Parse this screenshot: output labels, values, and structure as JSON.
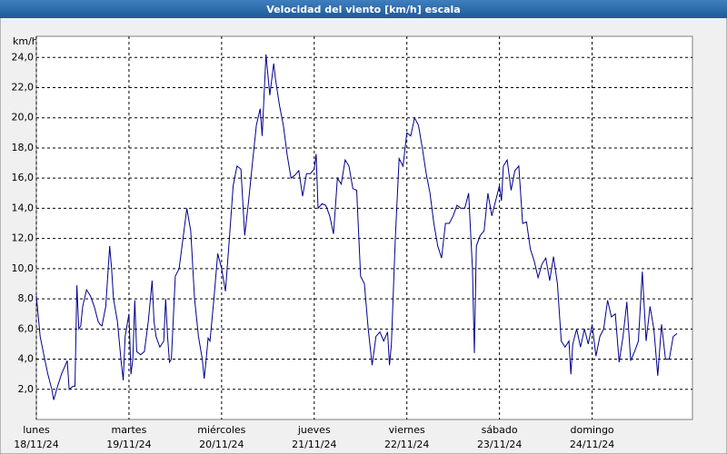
{
  "chart_data": {
    "type": "line",
    "title": "Velocidad del viento [km/h] escala",
    "y_unit": "km/h",
    "xlim": [
      0,
      170
    ],
    "ylim": [
      0,
      25.4
    ],
    "xticks": [
      {
        "value": 0,
        "label": "lunes"
      },
      {
        "value": 24,
        "label": "martes"
      },
      {
        "value": 48,
        "label": "miércoles"
      },
      {
        "value": 72,
        "label": "jueves"
      },
      {
        "value": 96,
        "label": "viernes"
      },
      {
        "value": 120,
        "label": "sábado"
      },
      {
        "value": 144,
        "label": "domingo"
      }
    ],
    "xtick_dates": [
      "18/11/24",
      "19/11/24",
      "20/11/24",
      "21/11/24",
      "22/11/24",
      "23/11/24",
      "24/11/24"
    ],
    "yticks": [
      {
        "value": 2,
        "label": "2,0"
      },
      {
        "value": 4,
        "label": "4,0"
      },
      {
        "value": 6,
        "label": "6,0"
      },
      {
        "value": 8,
        "label": "8,0"
      },
      {
        "value": 10,
        "label": "10,0"
      },
      {
        "value": 12,
        "label": "12,0"
      },
      {
        "value": 14,
        "label": "14,0"
      },
      {
        "value": 16,
        "label": "16,0"
      },
      {
        "value": 18,
        "label": "18,0"
      },
      {
        "value": 20,
        "label": "20,0"
      },
      {
        "value": 22,
        "label": "22,0"
      },
      {
        "value": 24,
        "label": "24,0"
      }
    ],
    "grid": true,
    "color": "#00008b",
    "x": [
      0,
      1,
      2,
      3,
      4,
      4.5,
      5.5,
      6.5,
      7.5,
      8,
      8.5,
      9.5,
      10,
      10.5,
      11,
      11.5,
      12,
      13,
      14,
      15,
      16,
      16.5,
      17,
      18,
      19,
      19.5,
      20,
      21,
      22,
      22.5,
      23,
      24,
      24.5,
      25,
      25.5,
      26,
      27,
      28,
      29,
      30,
      30.5,
      31,
      32,
      33,
      33.5,
      34,
      34.5,
      35,
      36,
      37,
      38,
      39,
      40,
      41,
      42,
      43,
      43.5,
      44,
      44.5,
      45,
      46,
      47,
      48,
      49,
      50,
      51,
      52,
      53,
      54,
      55,
      56,
      57,
      58,
      58.5,
      59.5,
      60.5,
      61.5,
      62,
      63,
      64,
      65,
      66,
      67,
      68,
      69,
      70,
      71,
      72,
      72.5,
      73,
      74,
      75,
      76,
      77,
      78,
      79,
      80,
      81,
      82,
      83,
      84,
      85,
      86,
      87,
      88,
      89,
      90,
      91,
      91.5,
      92,
      93,
      94,
      95,
      96,
      97,
      98,
      99,
      100,
      101,
      102,
      103,
      104,
      105,
      106,
      107,
      108,
      109,
      110,
      111,
      112,
      113,
      113.5,
      114,
      115,
      116,
      117,
      118,
      119,
      120,
      120.5,
      121,
      122,
      123,
      124,
      125,
      126,
      127,
      128,
      129,
      130,
      131,
      132,
      133,
      134,
      135,
      136,
      137,
      138,
      138.5,
      139,
      140,
      141,
      142,
      143,
      144,
      145,
      146,
      147,
      148,
      149,
      150,
      151,
      152,
      153,
      154,
      155,
      156,
      157,
      158,
      159,
      160,
      161,
      162,
      163,
      164,
      165,
      166
    ],
    "values": [
      8.2,
      5.5,
      4.2,
      3.0,
      2.0,
      1.3,
      2.2,
      3.0,
      3.6,
      3.9,
      2.0,
      2.2,
      2.2,
      8.9,
      6.0,
      6.2,
      7.5,
      8.6,
      8.2,
      7.5,
      6.5,
      6.3,
      6.2,
      7.5,
      11.5,
      10.0,
      8.0,
      6.5,
      3.8,
      2.6,
      5.5,
      7.0,
      3.0,
      4.0,
      7.9,
      4.5,
      4.3,
      4.5,
      6.5,
      9.2,
      6.5,
      5.5,
      4.8,
      5.2,
      8.0,
      5.5,
      3.8,
      4.0,
      9.5,
      10.0,
      12.0,
      14.0,
      12.5,
      8.0,
      5.5,
      4.0,
      2.7,
      4.0,
      5.4,
      5.2,
      8.0,
      11.0,
      10.0,
      8.5,
      12.0,
      15.5,
      16.8,
      16.6,
      12.2,
      14.5,
      17.0,
      19.5,
      20.6,
      18.8,
      24.2,
      21.5,
      23.6,
      22.5,
      20.8,
      19.5,
      17.5,
      16.0,
      16.2,
      16.5,
      14.8,
      16.3,
      16.3,
      16.6,
      17.6,
      14.0,
      14.3,
      14.2,
      13.5,
      12.3,
      16.0,
      15.6,
      17.2,
      16.8,
      15.3,
      15.2,
      9.5,
      9.0,
      6.0,
      3.6,
      5.5,
      5.8,
      5.2,
      5.8,
      3.6,
      5.0,
      12.0,
      17.3,
      16.8,
      19.0,
      18.8,
      20.0,
      19.5,
      18.0,
      16.3,
      15.0,
      13.0,
      11.5,
      10.7,
      13.0,
      13.0,
      13.5,
      14.2,
      14.0,
      14.0,
      15.0,
      10.0,
      4.4,
      11.5,
      12.2,
      12.5,
      15.0,
      13.5,
      14.5,
      15.5,
      14.5,
      16.8,
      17.2,
      15.2,
      16.5,
      16.8,
      13.0,
      13.1,
      11.3,
      10.5,
      9.4,
      10.3,
      10.7,
      9.2,
      10.8,
      9.0,
      5.2,
      4.8,
      5.2,
      3.0,
      5.0,
      6.0,
      4.8,
      6.0,
      5.0,
      6.3,
      4.2,
      5.5,
      6.0,
      7.9,
      6.8,
      7.0,
      3.8,
      5.5,
      7.8,
      3.9,
      4.5,
      5.2,
      9.8,
      5.2,
      7.5,
      6.0,
      2.9,
      6.3,
      4.0,
      4.0,
      5.5,
      5.7
    ]
  }
}
